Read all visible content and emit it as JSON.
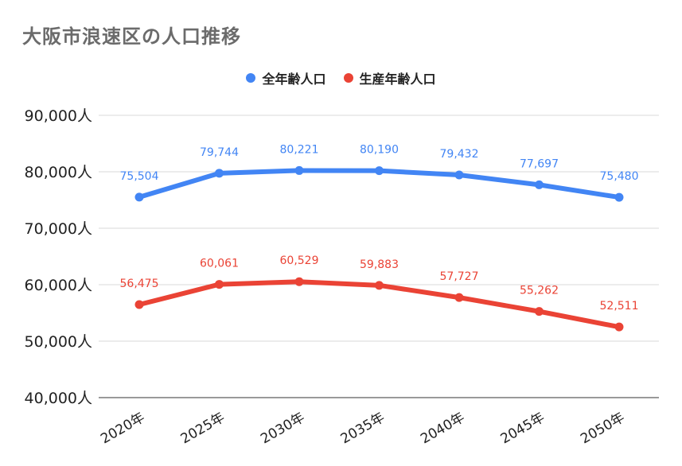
{
  "chart_data": {
    "type": "line",
    "title": "大阪市浪速区の人口推移",
    "categories": [
      "2020年",
      "2025年",
      "2030年",
      "2035年",
      "2040年",
      "2045年",
      "2050年"
    ],
    "series": [
      {
        "name": "全年齢人口",
        "color": "#4285f4",
        "values": [
          75504,
          79744,
          80221,
          80190,
          79432,
          77697,
          75480
        ]
      },
      {
        "name": "生産年齢人口",
        "color": "#ea4335",
        "values": [
          56475,
          60061,
          60529,
          59883,
          57727,
          55262,
          52511
        ]
      }
    ],
    "ylim": [
      40000,
      90000
    ],
    "yticks": [
      "40,000人",
      "50,000人",
      "60,000人",
      "70,000人",
      "80,000人",
      "90,000人"
    ],
    "ytick_values": [
      40000,
      50000,
      60000,
      70000,
      80000,
      90000
    ],
    "data_labels": [
      [
        "75,504",
        "79,744",
        "80,221",
        "80,190",
        "79,432",
        "77,697",
        "75,480"
      ],
      [
        "56,475",
        "60,061",
        "60,529",
        "59,883",
        "57,727",
        "55,262",
        "52,511"
      ]
    ],
    "legend_position": "top",
    "grid": true
  }
}
